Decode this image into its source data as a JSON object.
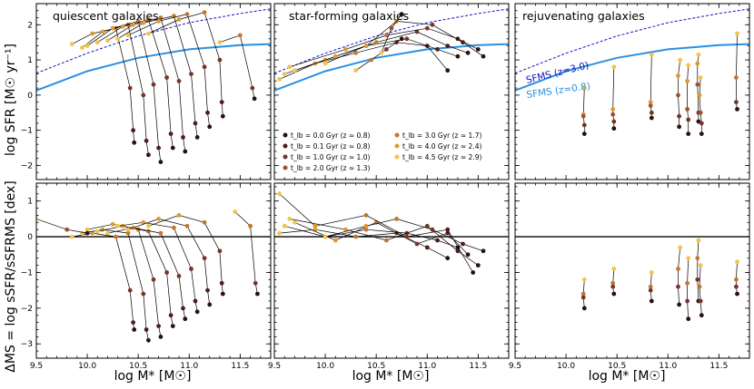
{
  "chart_data": {
    "type": "scatter",
    "x_ticks": [
      "9.5",
      "10.0",
      "10.5",
      "11.0",
      "11.5"
    ],
    "xlim": [
      9.5,
      11.8
    ],
    "xlabel": "log M* [M☉]",
    "top_row": {
      "ylabel": "log SFR [M☉ yr⁻¹]",
      "ylim": [
        -2.4,
        2.6
      ],
      "y_ticks": [
        "−2",
        "−1",
        "0",
        "1",
        "2"
      ]
    },
    "bottom_row": {
      "ylabel": "ΔMS = log sSFR/sSFRMS [dex]",
      "ylim": [
        -3.4,
        1.5
      ],
      "y_ticks": [
        "−3",
        "−2",
        "−1",
        "0",
        "1"
      ],
      "reference_line_y": 0
    },
    "panels": [
      {
        "title": "quiescent galaxies"
      },
      {
        "title": "star-forming galaxies"
      },
      {
        "title": "rejuvenating galaxies"
      }
    ],
    "main_sequence": [
      {
        "label": "SFMS (z=3.0)",
        "color": "#1010c8",
        "style": "dashed",
        "x": [
          9.5,
          10.0,
          10.5,
          11.0,
          11.5,
          11.8
        ],
        "y": [
          0.62,
          1.19,
          1.68,
          2.06,
          2.32,
          2.45
        ]
      },
      {
        "label": "SFMS (z=0.8)",
        "color": "#2b8fe0",
        "style": "solid",
        "x": [
          9.5,
          10.0,
          10.5,
          11.0,
          11.5,
          11.8
        ],
        "y": [
          0.13,
          0.68,
          1.06,
          1.3,
          1.42,
          1.45
        ]
      }
    ],
    "legend": {
      "placement": "center",
      "entries": [
        {
          "label": "t_lb = 0.0 Gyr (z ≈ 0.8)",
          "color": "#2a1012"
        },
        {
          "label": "t_lb = 0.1 Gyr (z ≈ 0.8)",
          "color": "#4e1b1f"
        },
        {
          "label": "t_lb = 1.0 Gyr (z ≈ 1.0)",
          "color": "#76342a"
        },
        {
          "label": "t_lb = 2.0 Gyr (z ≈ 1.3)",
          "color": "#9c5330"
        },
        {
          "label": "t_lb = 3.0 Gyr (z ≈ 1.7)",
          "color": "#c27630"
        },
        {
          "label": "t_lb = 4.0 Gyr (z ≈ 2.4)",
          "color": "#dd9a2e"
        },
        {
          "label": "t_lb = 4.5 Gyr (z ≈ 2.9)",
          "color": "#f2c449"
        }
      ]
    },
    "sample_tracks": {
      "quiescent": [
        {
          "x": [
            9.85,
            10.05,
            10.28,
            10.42,
            10.45,
            10.46
          ],
          "y": [
            1.45,
            1.75,
            1.9,
            0.2,
            -1.0,
            -1.35
          ]
        },
        {
          "x": [
            9.95,
            10.15,
            10.4,
            10.55,
            10.58,
            10.6
          ],
          "y": [
            1.35,
            1.8,
            2.0,
            0.0,
            -1.3,
            -1.7
          ]
        },
        {
          "x": [
            10.0,
            10.25,
            10.5,
            10.65,
            10.7,
            10.72
          ],
          "y": [
            1.4,
            1.9,
            2.1,
            0.3,
            -1.5,
            -1.9
          ]
        },
        {
          "x": [
            10.1,
            10.35,
            10.6,
            10.78,
            10.82,
            10.84
          ],
          "y": [
            1.5,
            1.95,
            2.15,
            0.5,
            -1.1,
            -1.5
          ]
        },
        {
          "x": [
            10.2,
            10.45,
            10.72,
            10.9,
            10.94,
            10.96
          ],
          "y": [
            1.55,
            2.0,
            2.2,
            0.4,
            -1.2,
            -1.6
          ]
        },
        {
          "x": [
            10.3,
            10.55,
            10.85,
            11.02,
            11.06,
            11.08
          ],
          "y": [
            1.6,
            2.05,
            2.25,
            0.6,
            -0.8,
            -1.2
          ]
        },
        {
          "x": [
            10.4,
            10.7,
            10.98,
            11.15,
            11.18,
            11.2
          ],
          "y": [
            1.7,
            2.1,
            2.3,
            0.8,
            -0.5,
            -0.9
          ]
        },
        {
          "x": [
            10.6,
            10.9,
            11.15,
            11.3,
            11.32,
            11.33
          ],
          "y": [
            1.75,
            2.15,
            2.35,
            1.0,
            -0.2,
            -0.6
          ]
        },
        {
          "x": [
            11.3,
            11.5,
            11.62,
            11.64
          ],
          "y": [
            1.5,
            1.7,
            0.2,
            -0.1
          ]
        }
      ],
      "star_forming": [
        {
          "x": [
            9.55,
            9.9,
            10.3,
            10.7,
            11.0,
            11.2
          ],
          "y": [
            0.45,
            0.9,
            1.2,
            1.5,
            1.4,
            0.7
          ]
        },
        {
          "x": [
            9.6,
            10.0,
            10.4,
            10.8,
            11.1,
            11.3
          ],
          "y": [
            0.6,
            1.0,
            1.4,
            1.6,
            1.3,
            1.1
          ]
        },
        {
          "x": [
            9.7,
            10.1,
            10.5,
            10.9,
            11.2,
            11.4
          ],
          "y": [
            0.7,
            1.1,
            1.5,
            1.8,
            1.4,
            1.2
          ]
        },
        {
          "x": [
            9.65,
            10.2,
            10.6,
            11.0,
            11.3,
            11.5
          ],
          "y": [
            0.8,
            1.3,
            1.7,
            1.9,
            1.6,
            1.3
          ]
        },
        {
          "x": [
            10.0,
            10.4,
            10.7,
            11.05,
            11.35,
            11.55
          ],
          "y": [
            0.9,
            1.4,
            2.1,
            2.0,
            1.5,
            1.1
          ]
        },
        {
          "x": [
            10.3,
            10.45,
            10.6,
            10.75
          ],
          "y": [
            0.7,
            1.0,
            1.3,
            1.6
          ]
        },
        {
          "x": [
            10.55,
            10.65,
            10.75
          ],
          "y": [
            1.2,
            1.9,
            2.3
          ]
        }
      ],
      "rejuvenating": [
        {
          "x": [
            10.18,
            10.17,
            10.17,
            10.18,
            10.18
          ],
          "y": [
            0.2,
            -0.55,
            -0.6,
            -0.85,
            -1.1
          ]
        },
        {
          "x": [
            10.47,
            10.46,
            10.46,
            10.47,
            10.47
          ],
          "y": [
            0.8,
            -0.4,
            -0.55,
            -0.75,
            -0.95
          ]
        },
        {
          "x": [
            10.84,
            10.83,
            10.83,
            10.84,
            10.84
          ],
          "y": [
            1.15,
            -0.2,
            -0.3,
            -0.5,
            -0.65
          ]
        },
        {
          "x": [
            11.12,
            11.1,
            11.1,
            11.11,
            11.11
          ],
          "y": [
            1.0,
            0.55,
            0.0,
            -0.6,
            -0.9
          ]
        },
        {
          "x": [
            11.2,
            11.19,
            11.19,
            11.2,
            11.2
          ],
          "y": [
            0.85,
            0.4,
            -0.4,
            -0.7,
            -1.1
          ]
        },
        {
          "x": [
            11.3,
            11.29,
            11.29,
            11.3,
            11.3
          ],
          "y": [
            1.15,
            0.9,
            0.3,
            -0.5,
            -0.75
          ]
        },
        {
          "x": [
            11.32,
            11.31,
            11.32,
            11.33,
            11.33
          ],
          "y": [
            0.5,
            0.0,
            -0.5,
            -0.8,
            -1.1
          ]
        },
        {
          "x": [
            11.68,
            11.67,
            11.67,
            11.68
          ],
          "y": [
            1.75,
            0.5,
            -0.2,
            -0.4
          ]
        }
      ],
      "bottom_quiescent": [
        {
          "x": [
            9.85,
            10.05,
            10.28,
            10.42,
            10.45,
            10.46
          ],
          "y": [
            0.0,
            0.1,
            0.0,
            -1.5,
            -2.4,
            -2.6
          ]
        },
        {
          "x": [
            9.95,
            10.15,
            10.4,
            10.55,
            10.58,
            10.6
          ],
          "y": [
            0.1,
            0.2,
            0.1,
            -1.6,
            -2.6,
            -2.9
          ]
        },
        {
          "x": [
            10.0,
            10.25,
            10.5,
            10.65,
            10.7,
            10.72
          ],
          "y": [
            0.2,
            0.35,
            0.2,
            -1.2,
            -2.5,
            -2.8
          ]
        },
        {
          "x": [
            10.1,
            10.35,
            10.6,
            10.78,
            10.82,
            10.84
          ],
          "y": [
            0.15,
            0.3,
            0.15,
            -1.0,
            -2.2,
            -2.5
          ]
        },
        {
          "x": [
            10.2,
            10.45,
            10.72,
            10.9,
            10.94,
            10.96
          ],
          "y": [
            0.1,
            0.25,
            0.1,
            -1.1,
            -2.0,
            -2.3
          ]
        },
        {
          "x": [
            10.3,
            10.55,
            10.85,
            11.02,
            11.06,
            11.08
          ],
          "y": [
            0.3,
            0.4,
            0.25,
            -0.9,
            -1.8,
            -2.1
          ]
        },
        {
          "x": [
            10.4,
            10.7,
            10.98,
            11.15,
            11.18,
            11.2
          ],
          "y": [
            0.2,
            0.5,
            0.3,
            -0.6,
            -1.5,
            -1.9
          ]
        },
        {
          "x": [
            10.6,
            10.9,
            11.15,
            11.3,
            11.32,
            11.33
          ],
          "y": [
            0.3,
            0.6,
            0.4,
            -0.4,
            -1.3,
            -1.6
          ]
        },
        {
          "x": [
            9.5,
            9.8,
            10.0
          ],
          "y": [
            0.5,
            0.2,
            0.1
          ]
        },
        {
          "x": [
            11.45,
            11.6,
            11.65,
            11.67
          ],
          "y": [
            0.7,
            0.3,
            -1.3,
            -1.6
          ]
        }
      ],
      "bottom_star_forming": [
        {
          "x": [
            9.55,
            9.9,
            10.3,
            10.7,
            11.0,
            11.2
          ],
          "y": [
            0.1,
            0.2,
            0.0,
            0.1,
            -0.3,
            -0.6
          ]
        },
        {
          "x": [
            9.6,
            10.0,
            10.4,
            10.8,
            11.1,
            11.3
          ],
          "y": [
            0.3,
            0.0,
            0.2,
            0.1,
            -0.1,
            -0.3
          ]
        },
        {
          "x": [
            9.7,
            10.1,
            10.5,
            10.9,
            11.2,
            11.4
          ],
          "y": [
            0.4,
            -0.1,
            0.4,
            -0.2,
            0.1,
            -0.5
          ]
        },
        {
          "x": [
            9.65,
            10.2,
            10.6,
            11.0,
            11.3,
            11.5
          ],
          "y": [
            0.5,
            0.2,
            -0.1,
            0.3,
            -0.4,
            -0.8
          ]
        },
        {
          "x": [
            9.55,
            9.9,
            10.4,
            10.8,
            11.2,
            11.45
          ],
          "y": [
            1.2,
            0.3,
            0.6,
            0.0,
            0.2,
            -1.0
          ]
        },
        {
          "x": [
            10.0,
            10.4,
            10.7,
            11.05,
            11.35,
            11.55
          ],
          "y": [
            0.0,
            0.3,
            0.5,
            0.2,
            -0.2,
            -0.4
          ]
        }
      ],
      "bottom_rejuvenating": [
        {
          "x": [
            10.18,
            10.17,
            10.17,
            10.18
          ],
          "y": [
            -1.2,
            -1.6,
            -1.7,
            -2.0
          ]
        },
        {
          "x": [
            10.47,
            10.46,
            10.46,
            10.47
          ],
          "y": [
            -0.9,
            -1.3,
            -1.4,
            -1.6
          ]
        },
        {
          "x": [
            10.84,
            10.83,
            10.83,
            10.84
          ],
          "y": [
            -1.0,
            -1.4,
            -1.5,
            -1.8
          ]
        },
        {
          "x": [
            11.12,
            11.1,
            11.1,
            11.11
          ],
          "y": [
            -0.3,
            -0.9,
            -1.4,
            -1.9
          ]
        },
        {
          "x": [
            11.2,
            11.19,
            11.19,
            11.2
          ],
          "y": [
            -0.6,
            -1.3,
            -1.8,
            -2.3
          ]
        },
        {
          "x": [
            11.3,
            11.29,
            11.29,
            11.3
          ],
          "y": [
            -0.1,
            -0.6,
            -1.2,
            -1.8
          ]
        },
        {
          "x": [
            11.32,
            11.31,
            11.32,
            11.33
          ],
          "y": [
            -0.8,
            -1.4,
            -1.8,
            -2.2
          ]
        },
        {
          "x": [
            11.68,
            11.67,
            11.67,
            11.68
          ],
          "y": [
            -0.7,
            -1.2,
            -1.4,
            -1.6
          ]
        }
      ]
    }
  }
}
